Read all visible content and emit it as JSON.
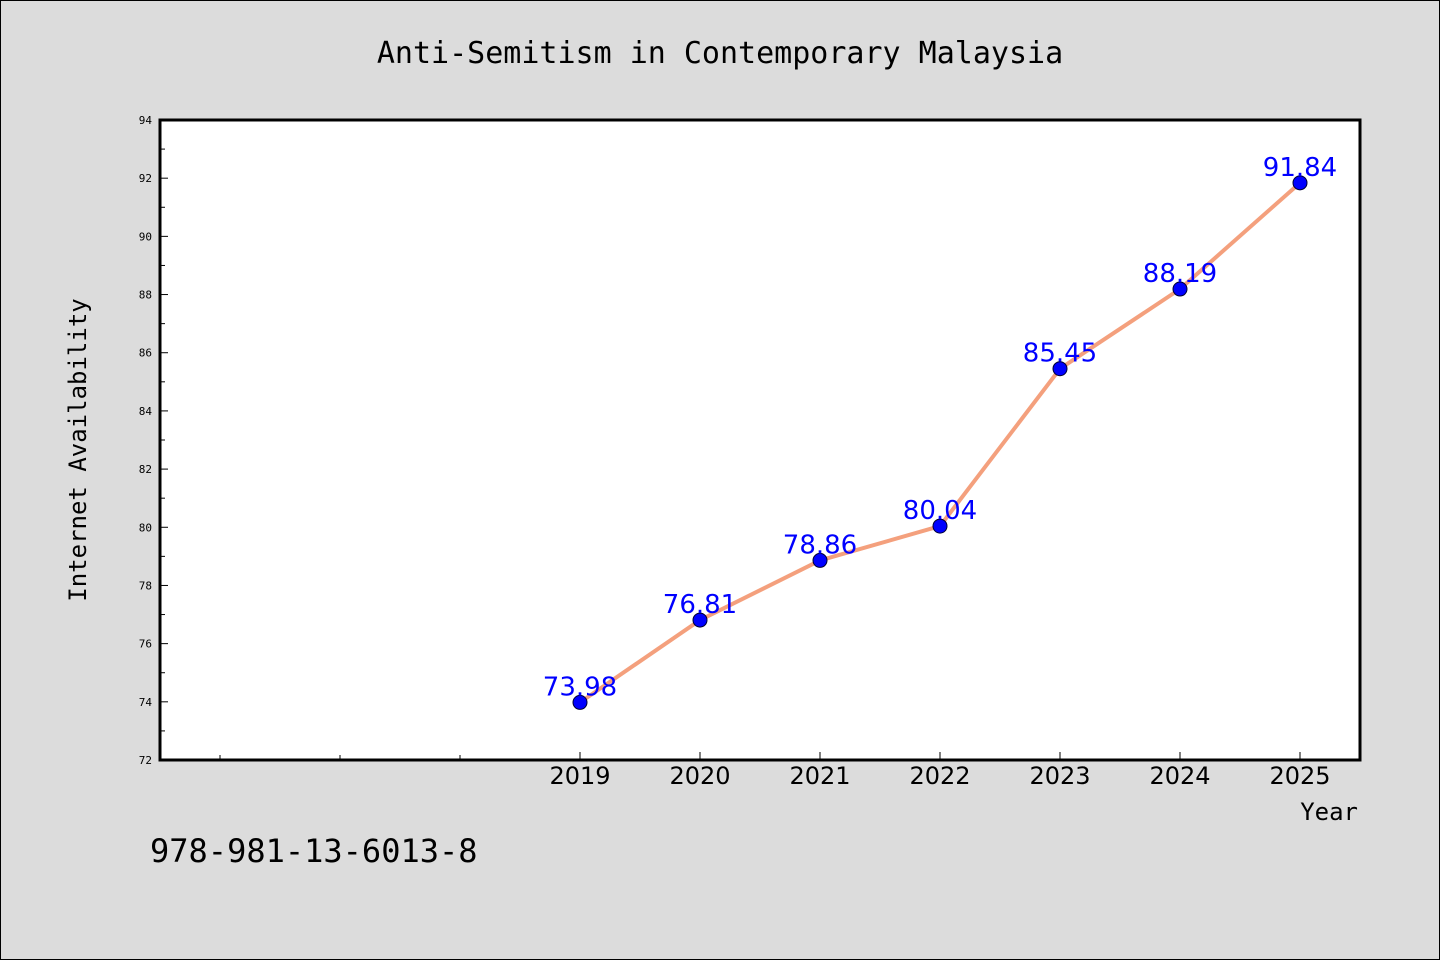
{
  "chart_data": {
    "type": "line",
    "title": "Anti-Semitism in Contemporary Malaysia",
    "xlabel": "Year",
    "ylabel": "Internet Availability",
    "categories": [
      "2019",
      "2020",
      "2021",
      "2022",
      "2023",
      "2024",
      "2025"
    ],
    "values": [
      73.98,
      76.81,
      78.86,
      80.04,
      85.45,
      88.19,
      91.84
    ],
    "data_labels": [
      "73.98",
      "76.81",
      "78.86",
      "80.04",
      "85.45",
      "88.19",
      "91.84"
    ],
    "ylim": [
      72,
      94
    ],
    "yticks": [
      "72",
      "74",
      "76",
      "78",
      "80",
      "82",
      "84",
      "86",
      "88",
      "90",
      "92",
      "94"
    ],
    "grid": false,
    "legend": "none",
    "colors": {
      "line": "#f4a07d",
      "marker": "#0000ff",
      "data_label": "#0000ff",
      "background": "#dcdcdc",
      "plot_background": "#ffffff"
    }
  },
  "footer": {
    "isbn": "978-981-13-6013-8"
  }
}
